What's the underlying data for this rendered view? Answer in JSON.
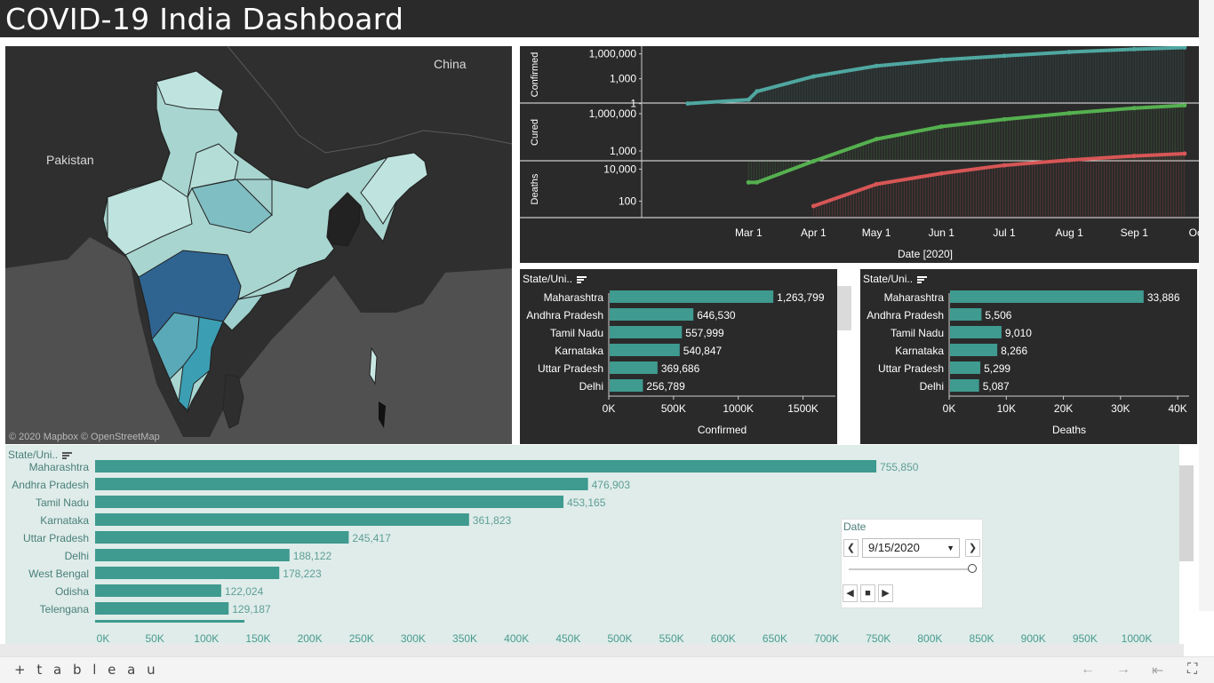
{
  "dashboard": {
    "title": "COVID-19 India Dashboard"
  },
  "map": {
    "labels": {
      "china": "China",
      "pakistan": "Pakistan"
    },
    "attribution": "© 2020 Mapbox © OpenStreetMap"
  },
  "timeline": {
    "rows": [
      {
        "label": "Confirmed",
        "color": "#4fa7a0",
        "ticks": [
          "1,000,000",
          "1,000",
          "1"
        ]
      },
      {
        "label": "Cured",
        "color": "#55b04f",
        "ticks": [
          "1,000,000",
          "1,000"
        ]
      },
      {
        "label": "Deaths",
        "color": "#d75656",
        "ticks": [
          "10,000",
          "100"
        ]
      }
    ],
    "x_ticks": [
      "Mar 1",
      "Apr 1",
      "May 1",
      "Jun 1",
      "Jul 1",
      "Aug 1",
      "Sep 1",
      "Oct"
    ],
    "x_axis_title": "Date [2020]"
  },
  "confirmed_chart": {
    "header": "State/Uni..",
    "axis_title": "Confirmed",
    "axis_ticks": [
      "0K",
      "500K",
      "1000K",
      "1500K"
    ]
  },
  "deaths_chart": {
    "header": "State/Uni..",
    "axis_title": "Deaths",
    "axis_ticks": [
      "0K",
      "10K",
      "20K",
      "30K",
      "40K"
    ]
  },
  "active_chart": {
    "header": "State/Uni..",
    "axis_ticks": [
      "0K",
      "50K",
      "100K",
      "150K",
      "200K",
      "250K",
      "300K",
      "350K",
      "400K",
      "450K",
      "500K",
      "550K",
      "600K",
      "650K",
      "700K",
      "750K",
      "800K",
      "850K",
      "900K",
      "950K",
      "1000K"
    ]
  },
  "date_filter": {
    "label": "Date",
    "value": "9/15/2020",
    "position": 1.0
  },
  "footer": {
    "logo": "+ t a b l e a u"
  },
  "colors": {
    "bar": "#3f9a8f",
    "title_bg": "#2a2a2a",
    "panel_bg": "#2a2a2a",
    "bottom_bg": "#dfece9",
    "confirmed_line": "#4fa7a0",
    "cured_line": "#55b04f",
    "deaths_line": "#d75656"
  },
  "chart_data": [
    {
      "type": "line",
      "title": "",
      "xlabel": "Date [2020]",
      "y_scale": "log",
      "x": [
        "2020-02-01",
        "2020-03-01",
        "2020-03-05",
        "2020-04-01",
        "2020-05-01",
        "2020-06-01",
        "2020-07-01",
        "2020-08-01",
        "2020-09-01",
        "2020-09-25"
      ],
      "series": [
        {
          "name": "Confirmed",
          "values": [
            1,
            3,
            30,
            1900,
            35000,
            190000,
            585000,
            1700000,
            3700000,
            5800000
          ]
        },
        {
          "name": "Cured",
          "values": [
            null,
            3,
            3,
            150,
            9000,
            92000,
            350000,
            1100000,
            2800000,
            4700000
          ]
        },
        {
          "name": "Deaths",
          "values": [
            null,
            null,
            null,
            50,
            1150,
            5400,
            17400,
            36500,
            66300,
            92000
          ]
        }
      ]
    },
    {
      "type": "bar",
      "xlabel": "Confirmed",
      "categories": [
        "Maharashtra",
        "Andhra Pradesh",
        "Tamil Nadu",
        "Karnataka",
        "Uttar Pradesh",
        "Delhi"
      ],
      "values": [
        1263799,
        646530,
        557999,
        540847,
        369686,
        256789
      ],
      "value_labels": [
        "1,263,799",
        "646,530",
        "557,999",
        "540,847",
        "369,686",
        "256,789"
      ],
      "xlim": [
        0,
        1750000
      ]
    },
    {
      "type": "bar",
      "xlabel": "Deaths",
      "categories": [
        "Maharashtra",
        "Andhra Pradesh",
        "Tamil Nadu",
        "Karnataka",
        "Uttar Pradesh",
        "Delhi"
      ],
      "values": [
        33886,
        5506,
        9010,
        8266,
        5299,
        5087
      ],
      "value_labels": [
        "33,886",
        "5,506",
        "9,010",
        "8,266",
        "5,299",
        "5,087"
      ],
      "xlim": [
        0,
        42000
      ]
    },
    {
      "type": "bar",
      "categories": [
        "Maharashtra",
        "Andhra Pradesh",
        "Tamil Nadu",
        "Karnataka",
        "Uttar Pradesh",
        "Delhi",
        "West Bengal",
        "Odisha",
        "Telengana"
      ],
      "values": [
        755850,
        476903,
        453165,
        361823,
        245417,
        188122,
        178223,
        122024,
        129187
      ],
      "value_labels": [
        "755,850",
        "476,903",
        "453,165",
        "361,823",
        "245,417",
        "188,122",
        "178,223",
        "122,024",
        "129,187"
      ],
      "xlim": [
        0,
        1000000
      ]
    }
  ]
}
